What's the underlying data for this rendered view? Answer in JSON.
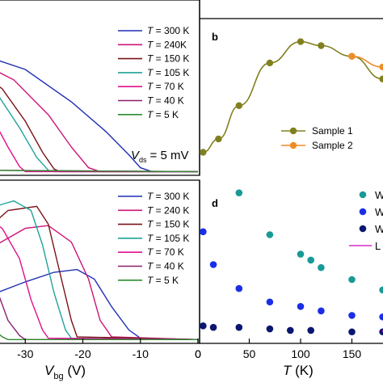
{
  "chart_data": [
    {
      "panel": "top-left",
      "type": "line",
      "annotation": {
        "label": "V",
        "sub": "ds",
        "value": "= 5 mV"
      },
      "legend": {
        "position": "top-right",
        "entries": [
          {
            "T": "300 K",
            "color": "#1f2fb5"
          },
          {
            "T": "240K",
            "color": "#cc1477"
          },
          {
            "T": "150 K",
            "color": "#7a1218"
          },
          {
            "T": "105 K",
            "color": "#1fa39a"
          },
          {
            "T": "70 K",
            "color": "#e0108e"
          },
          {
            "T": "40 K",
            "color": "#8c1f6e"
          },
          {
            "T": "5 K",
            "color": "#2f8a2f"
          }
        ]
      },
      "series": [
        {
          "color": "#1f2fb5",
          "points": [
            [
              -40,
              0.95
            ],
            [
              -30,
              0.8
            ],
            [
              -22,
              0.55
            ],
            [
              -16,
              0.32
            ],
            [
              -12,
              0.14
            ],
            [
              -10,
              0.04
            ],
            [
              -8,
              0.01
            ],
            [
              0,
              0.01
            ]
          ]
        },
        {
          "color": "#cc1477",
          "points": [
            [
              -40,
              0.9
            ],
            [
              -32,
              0.72
            ],
            [
              -26,
              0.45
            ],
            [
              -22,
              0.2
            ],
            [
              -19,
              0.04
            ],
            [
              -17,
              0.01
            ],
            [
              0,
              0.01
            ]
          ]
        },
        {
          "color": "#7a1218",
          "points": [
            [
              -40,
              0.85
            ],
            [
              -34,
              0.65
            ],
            [
              -30,
              0.4
            ],
            [
              -27,
              0.16
            ],
            [
              -25,
              0.03
            ],
            [
              -24,
              0.01
            ],
            [
              0,
              0.01
            ]
          ]
        },
        {
          "color": "#1fa39a",
          "points": [
            [
              -40,
              0.82
            ],
            [
              -35,
              0.62
            ],
            [
              -31,
              0.35
            ],
            [
              -28,
              0.12
            ],
            [
              -26,
              0.02
            ],
            [
              -25,
              0.01
            ],
            [
              0,
              0.01
            ]
          ]
        },
        {
          "color": "#e0108e",
          "points": [
            [
              -40,
              0.7
            ],
            [
              -36,
              0.45
            ],
            [
              -33,
              0.2
            ],
            [
              -31,
              0.05
            ],
            [
              -30,
              0.01
            ],
            [
              0,
              0.01
            ]
          ]
        },
        {
          "color": "#8c1f6e",
          "points": [
            [
              -40,
              0.45
            ],
            [
              -38,
              0.28
            ],
            [
              -36,
              0.1
            ],
            [
              -35,
              0.02
            ],
            [
              0,
              0.01
            ]
          ]
        },
        {
          "color": "#2f8a2f",
          "points": [
            [
              -40,
              0.15
            ],
            [
              -39,
              0.06
            ],
            [
              -38,
              0.02
            ],
            [
              0,
              0.01
            ]
          ]
        }
      ]
    },
    {
      "panel": "bottom-left",
      "type": "line",
      "xlabel": {
        "main": "V",
        "sub": "bg",
        "unit": " (V)"
      },
      "xticks": [
        "-30",
        "-20",
        "-10",
        "0"
      ],
      "xlim": [
        -40,
        0
      ],
      "legend": {
        "position": "top-right",
        "entries": [
          {
            "T": "300 K",
            "color": "#1f2fb5"
          },
          {
            "T": "240 K",
            "color": "#cc1477"
          },
          {
            "T": "150 K",
            "color": "#7a1218"
          },
          {
            "T": "105 K",
            "color": "#1fa39a"
          },
          {
            "T": "70 K",
            "color": "#e0108e"
          },
          {
            "T": "40 K",
            "color": "#8c1f6e"
          },
          {
            "T": "5 K",
            "color": "#2f8a2f"
          }
        ]
      },
      "series": [
        {
          "color": "#1f2fb5",
          "points": [
            [
              -40,
              0.3
            ],
            [
              -35,
              0.35
            ],
            [
              -30,
              0.43
            ],
            [
              -25,
              0.5
            ],
            [
              -21,
              0.52
            ],
            [
              -18,
              0.45
            ],
            [
              -15,
              0.25
            ],
            [
              -12,
              0.08
            ],
            [
              -10,
              0.02
            ],
            [
              0,
              0.01
            ]
          ]
        },
        {
          "color": "#cc1477",
          "points": [
            [
              -40,
              0.6
            ],
            [
              -35,
              0.7
            ],
            [
              -30,
              0.82
            ],
            [
              -26,
              0.84
            ],
            [
              -22,
              0.72
            ],
            [
              -19,
              0.45
            ],
            [
              -17,
              0.15
            ],
            [
              -15,
              0.03
            ],
            [
              0,
              0.01
            ]
          ]
        },
        {
          "color": "#7a1218",
          "points": [
            [
              -40,
              0.7
            ],
            [
              -37,
              0.8
            ],
            [
              -33,
              0.95
            ],
            [
              -28,
              0.98
            ],
            [
              -26,
              0.85
            ],
            [
              -24,
              0.5
            ],
            [
              -22,
              0.15
            ],
            [
              -21,
              0.03
            ],
            [
              0,
              0.01
            ]
          ]
        },
        {
          "color": "#1fa39a",
          "points": [
            [
              -40,
              0.9
            ],
            [
              -36,
              0.97
            ],
            [
              -32,
              1.02
            ],
            [
              -29,
              0.95
            ],
            [
              -27,
              0.7
            ],
            [
              -25,
              0.35
            ],
            [
              -23,
              0.08
            ],
            [
              -22,
              0.02
            ],
            [
              0,
              0.01
            ]
          ]
        },
        {
          "color": "#e0108e",
          "points": [
            [
              -40,
              0.85
            ],
            [
              -37,
              0.9
            ],
            [
              -34,
              0.82
            ],
            [
              -31,
              0.6
            ],
            [
              -29,
              0.3
            ],
            [
              -27,
              0.08
            ],
            [
              -26,
              0.02
            ],
            [
              0,
              0.01
            ]
          ]
        },
        {
          "color": "#8c1f6e",
          "points": [
            [
              -40,
              0.72
            ],
            [
              -38,
              0.6
            ],
            [
              -35,
              0.38
            ],
            [
              -33,
              0.15
            ],
            [
              -31,
              0.04
            ],
            [
              -30,
              0.01
            ],
            [
              0,
              0.01
            ]
          ]
        },
        {
          "color": "#2f8a2f",
          "points": [
            [
              -40,
              0.35
            ],
            [
              -38,
              0.25
            ],
            [
              -36,
              0.1
            ],
            [
              -34,
              0.03
            ],
            [
              -33,
              0.01
            ],
            [
              0,
              0.01
            ]
          ]
        }
      ]
    },
    {
      "panel": "top-right",
      "type": "line",
      "panel_label": "b",
      "xlim": [
        0,
        225
      ],
      "legend": {
        "position": "bottom-right",
        "entries": [
          {
            "label": "Sample 1",
            "color": "#808020"
          },
          {
            "label": "Sample 2",
            "color": "#f08c28"
          }
        ]
      },
      "series": [
        {
          "name": "Sample 1",
          "color": "#808020",
          "x": [
            5,
            20,
            40,
            70,
            100,
            120,
            150,
            180,
            210
          ],
          "y": [
            0.1,
            0.2,
            0.45,
            0.77,
            0.93,
            0.9,
            0.82,
            0.65,
            0.48
          ]
        },
        {
          "name": "Sample 2",
          "color": "#f08c28",
          "x": [
            150,
            180
          ],
          "y": [
            0.82,
            0.74
          ]
        }
      ]
    },
    {
      "panel": "bottom-right",
      "type": "scatter",
      "panel_label": "d",
      "xlabel": {
        "main": "T",
        "unit": " (K)"
      },
      "xticks": [
        "0",
        "50",
        "100",
        "150",
        "200"
      ],
      "xlim": [
        0,
        225
      ],
      "legend": {
        "position": "top-right",
        "entries": [
          {
            "label": "W",
            "color": "#1a9a96",
            "kind": "dot"
          },
          {
            "label": "W",
            "color": "#1a2ee8",
            "kind": "dot"
          },
          {
            "label": "W",
            "color": "#0b1670",
            "kind": "dot"
          },
          {
            "label": "L",
            "color": "#d82ad0",
            "kind": "line"
          }
        ]
      },
      "series": [
        {
          "color": "#1a9a96",
          "x": [
            40,
            70,
            100,
            110,
            120,
            150,
            180,
            210
          ],
          "y": [
            0.98,
            0.7,
            0.57,
            0.53,
            0.48,
            0.4,
            0.33,
            0.25
          ]
        },
        {
          "color": "#1a2ee8",
          "x": [
            5,
            15,
            40,
            70,
            100,
            120,
            150,
            180,
            210
          ],
          "y": [
            0.72,
            0.5,
            0.34,
            0.25,
            0.22,
            0.19,
            0.16,
            0.15,
            0.14
          ]
        },
        {
          "color": "#0b1670",
          "x": [
            5,
            15,
            40,
            70,
            90,
            110,
            150,
            180,
            210
          ],
          "y": [
            0.09,
            0.08,
            0.08,
            0.07,
            0.06,
            0.06,
            0.05,
            0.05,
            0.05
          ]
        },
        {
          "color": "#d82ad0",
          "line": true,
          "x": [
            180,
            225
          ],
          "y": [
            0.05,
            0.06
          ]
        }
      ]
    }
  ]
}
